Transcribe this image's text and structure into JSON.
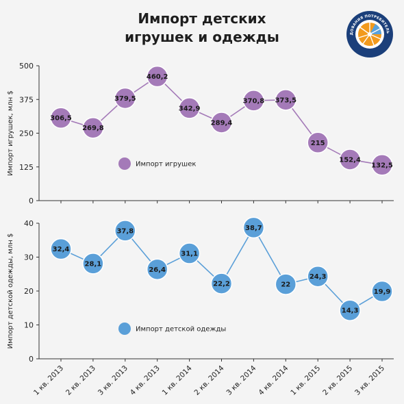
{
  "title_lines": [
    "Импорт детских",
    "игрушек и одежды"
  ],
  "logo": {
    "text": "ЦЕНТР ИССЛЕДОВАНИЯ ПОТРЕБИТЕЛЬСКОГО РЫНКА",
    "colors": {
      "ring": "#1b3f7a",
      "inner": "#ffffff",
      "orange": "#f29a1d",
      "blue": "#5aa2dc"
    }
  },
  "chart_data": [
    {
      "type": "line",
      "categories": [
        "1 кв. 2013",
        "2 кв. 2013",
        "3 кв. 2013",
        "4 кв. 2013",
        "1 кв. 2014",
        "2 кв. 2014",
        "3 кв. 2014",
        "4 кв. 2014",
        "1 кв. 2015",
        "2 кв. 2015",
        "3 кв. 2015"
      ],
      "series": [
        {
          "name": "Импорт игрушек",
          "values": [
            306.5,
            269.8,
            379.5,
            460.2,
            342.9,
            289.4,
            370.8,
            373.5,
            215,
            152.4,
            132.5
          ],
          "labels": [
            "306,5",
            "269,8",
            "379,5",
            "460,2",
            "342,9",
            "289,4",
            "370,8",
            "373,5",
            "215",
            "152,4",
            "132,5"
          ],
          "color": "#a47ab8",
          "line_color": "#a47ab8"
        }
      ],
      "ylabel": "Импорт игрушек, млн $",
      "ylim": [
        0,
        500
      ],
      "yticks": [
        0,
        125,
        250,
        375,
        500
      ],
      "ytick_labels": [
        "0",
        "125",
        "250",
        "375",
        "500"
      ],
      "legend_position": "center-left",
      "grid": false
    },
    {
      "type": "line",
      "categories": [
        "1 кв. 2013",
        "2 кв. 2013",
        "3 кв. 2013",
        "4 кв. 2013",
        "1 кв. 2014",
        "2 кв. 2014",
        "3 кв. 2014",
        "4 кв. 2014",
        "1 кв. 2015",
        "2 кв. 2015",
        "3 кв. 2015"
      ],
      "series": [
        {
          "name": "Импорт детской одежды",
          "values": [
            32.4,
            28.1,
            37.8,
            26.4,
            31.1,
            22.2,
            38.7,
            22,
            24.3,
            14.3,
            19.9
          ],
          "labels": [
            "32,4",
            "28,1",
            "37,8",
            "26,4",
            "31,1",
            "22,2",
            "38,7",
            "22",
            "24,3",
            "14,3",
            "19,9"
          ],
          "color": "#5a9fd8",
          "line_color": "#5a9fd8"
        }
      ],
      "ylabel": "Импорт детской одежды, млн $",
      "ylim": [
        0,
        40
      ],
      "yticks": [
        0,
        10,
        20,
        30,
        40
      ],
      "ytick_labels": [
        "0",
        "10",
        "20",
        "30",
        "40"
      ],
      "legend_position": "bottom-left",
      "grid": false
    }
  ]
}
